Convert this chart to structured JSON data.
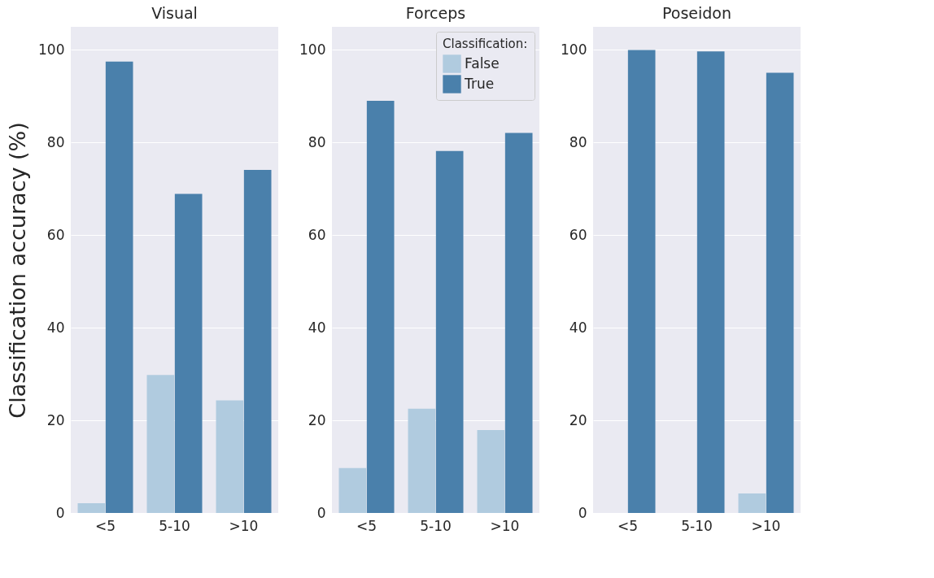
{
  "chart_data": [
    {
      "type": "bar",
      "title": "Visual",
      "ylabel": "Classification accuracy (%)",
      "categories": [
        "<5",
        "5-10",
        ">10"
      ],
      "series": [
        {
          "color": "#b0cbdf",
          "values": [
            2.1,
            29.8,
            24.3
          ]
        },
        {
          "color": "#4a80ab",
          "values": [
            97.5,
            68.9,
            74.1
          ]
        }
      ],
      "ylim": [
        0,
        105
      ],
      "yticks": [
        0,
        20,
        40,
        60,
        80,
        100
      ],
      "grid": "y",
      "legend": false
    },
    {
      "type": "bar",
      "title": "Forceps",
      "legend_title": "Classification:",
      "categories": [
        "<5",
        "5-10",
        ">10"
      ],
      "series": [
        {
          "name": "False",
          "color": "#b0cbdf",
          "values": [
            9.7,
            22.5,
            17.9
          ]
        },
        {
          "name": "True",
          "color": "#4a80ab",
          "values": [
            89.0,
            78.2,
            82.1
          ]
        }
      ],
      "ylim": [
        0,
        105
      ],
      "yticks": [
        0,
        20,
        40,
        60,
        80,
        100
      ],
      "grid": "y",
      "legend": "top right"
    },
    {
      "type": "bar",
      "title": "Poseidon",
      "categories": [
        "<5",
        "5-10",
        ">10"
      ],
      "series": [
        {
          "color": "#b0cbdf",
          "values": [
            0,
            0,
            4.2
          ]
        },
        {
          "color": "#4a80ab",
          "values": [
            100,
            99.7,
            95.1
          ]
        }
      ],
      "ylim": [
        0,
        105
      ],
      "yticks": [
        0,
        20,
        40,
        60,
        80,
        100
      ],
      "grid": "y",
      "legend": false
    }
  ]
}
